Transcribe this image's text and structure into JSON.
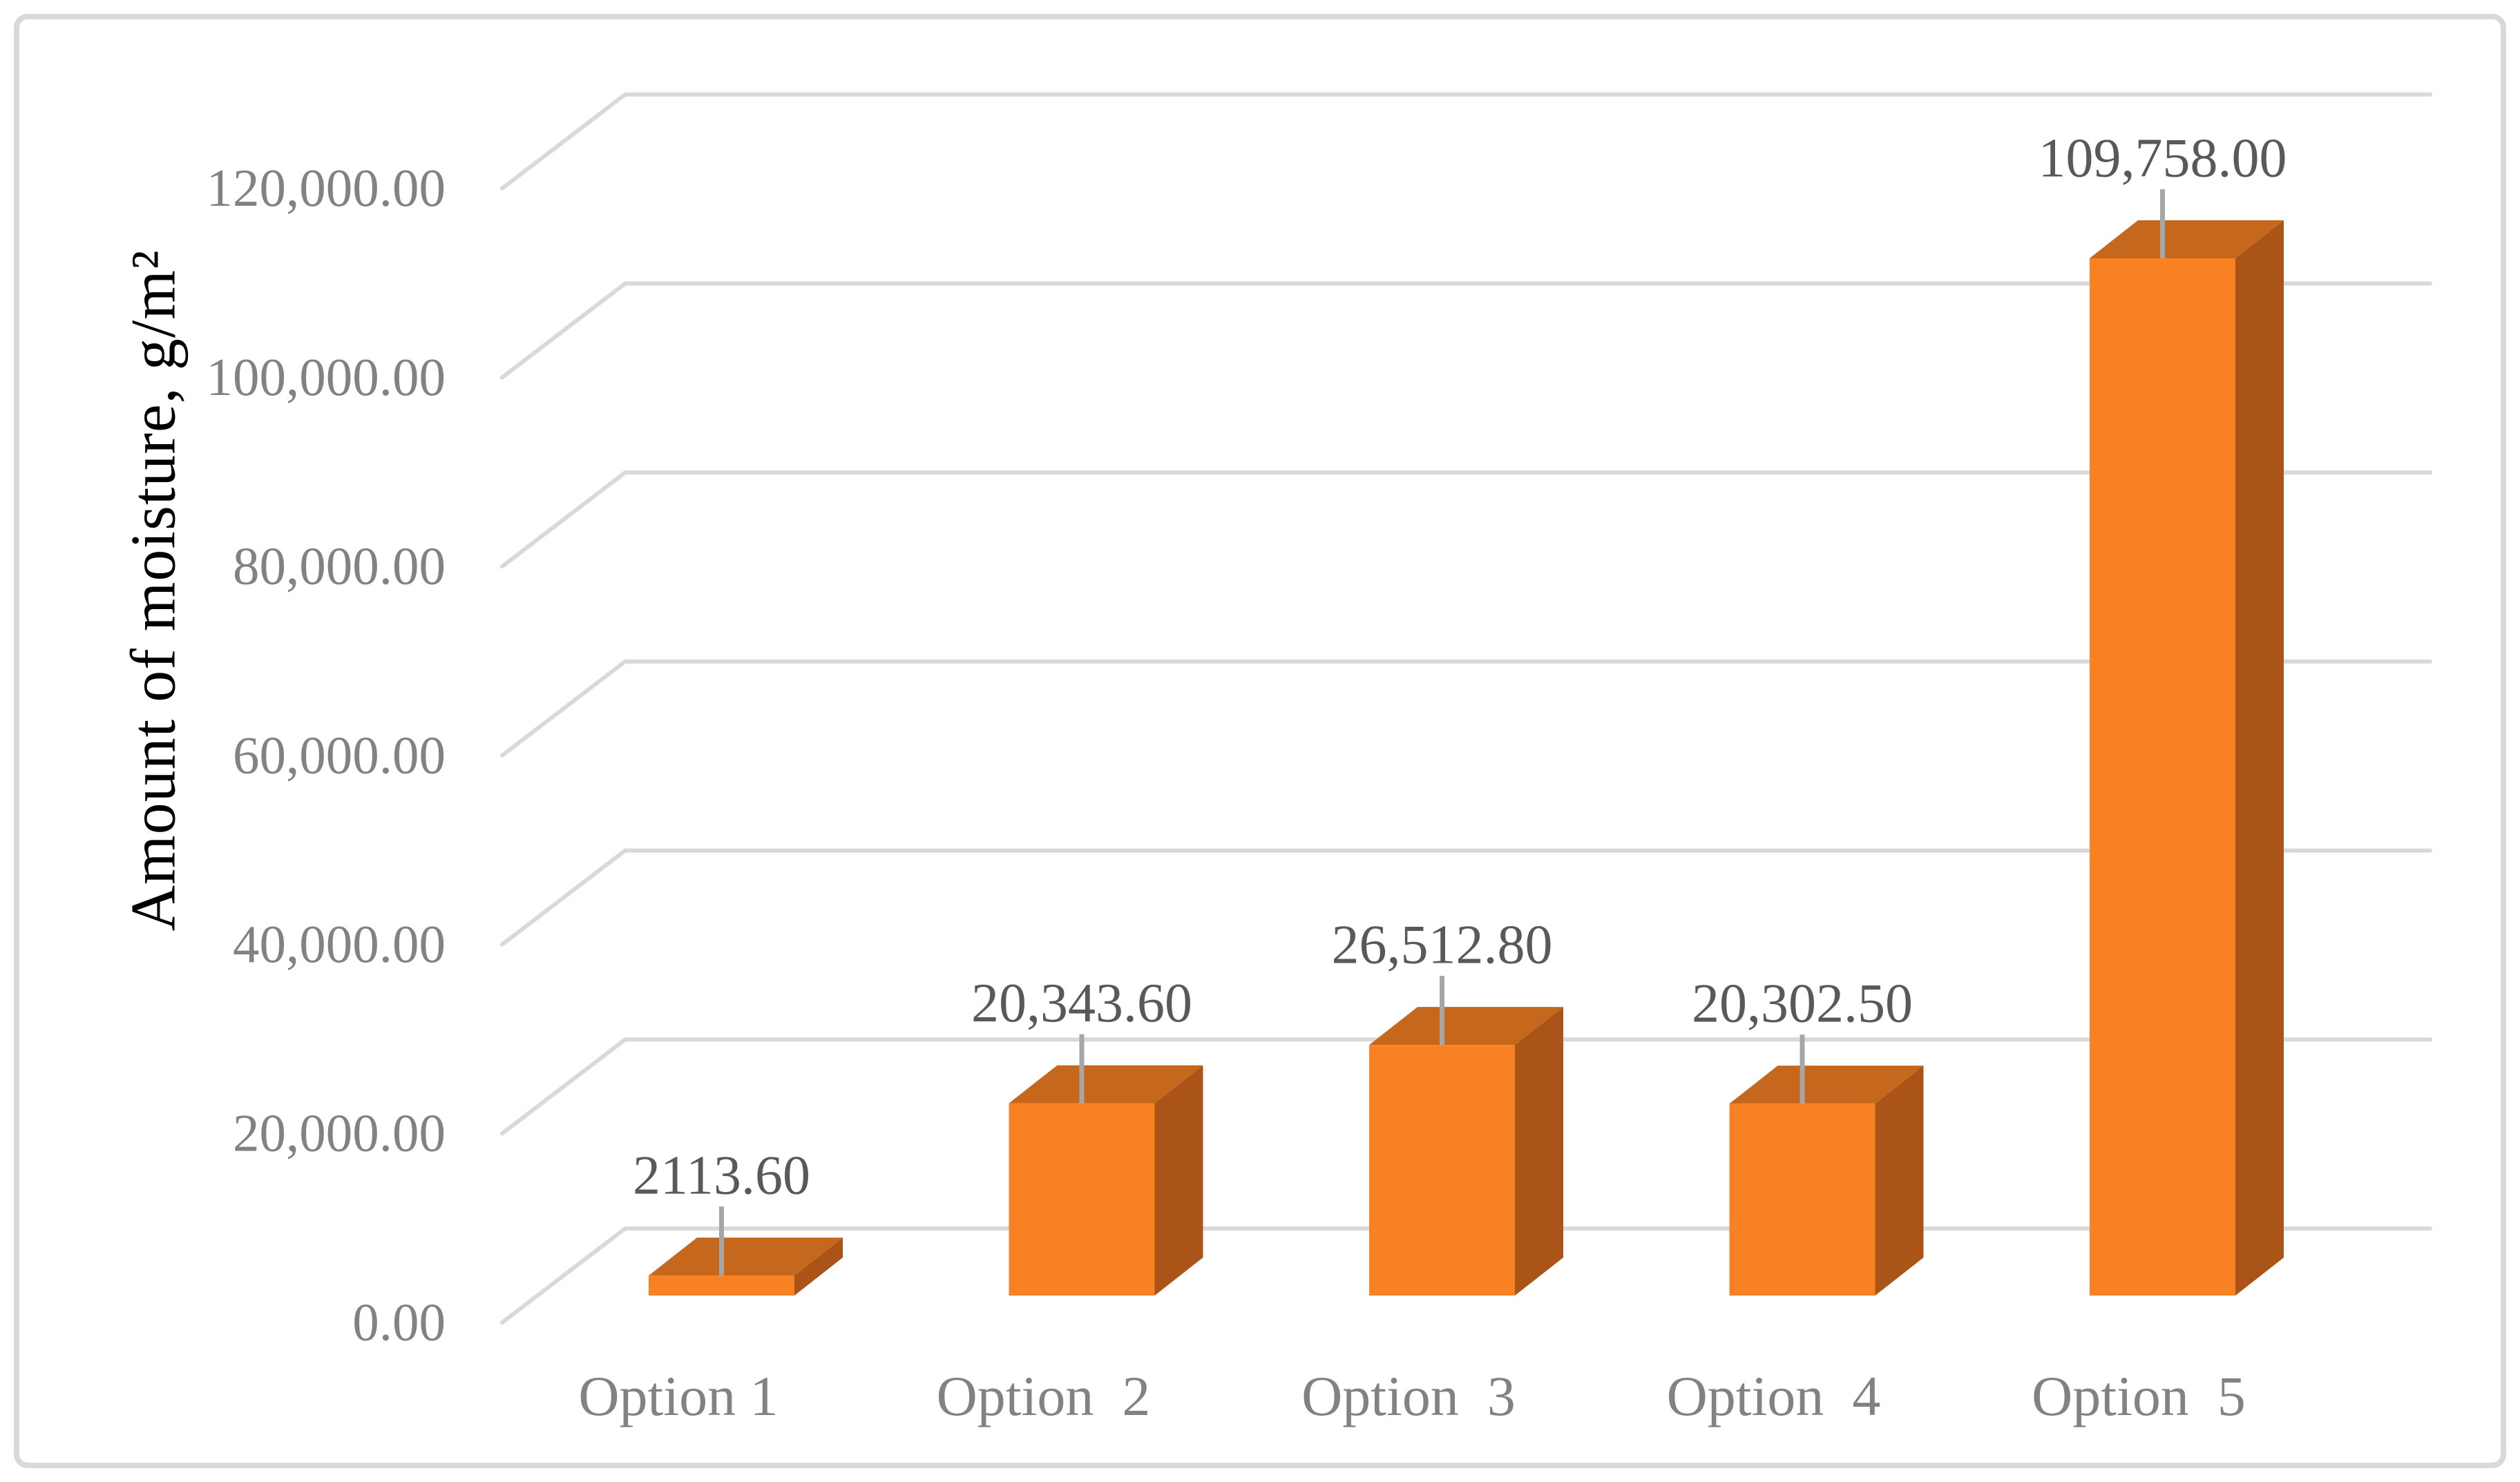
{
  "chart_data": {
    "type": "bar",
    "style": "3d-clustered-column",
    "title": "",
    "categories": [
      "Option 1",
      "Option  2",
      "Option  3",
      "Option  4",
      "Option  5"
    ],
    "series": [
      {
        "name": "Amount of moisture",
        "values": [
          2113.6,
          20343.6,
          26512.8,
          20302.5,
          109758.0
        ],
        "value_labels": [
          "2113.60",
          "20,343.60",
          "26,512.80",
          "20,302.50",
          "109,758.00"
        ]
      }
    ],
    "xlabel": "",
    "ylabel": "Amount of moisture, g/m²",
    "ylim": [
      0,
      120000
    ],
    "yticks": [
      0,
      20000,
      40000,
      60000,
      80000,
      100000,
      120000
    ],
    "ytick_labels": [
      "0.00",
      "20,000.00",
      "40,000.00",
      "60,000.00",
      "80,000.00",
      "100,000.00",
      "120,000.00"
    ],
    "grid": true,
    "legend": false,
    "data_labels_shown": true,
    "colors": {
      "bar_front": "#F88223",
      "bar_top": "#C5671D",
      "bar_side": "#AA5517",
      "gridline": "#D9D9D9",
      "leader_line": "#A6A6A6",
      "tick_text": "#828282",
      "category_text": "#828282",
      "data_label_text": "#595959",
      "axis_title_text": "#828282",
      "frame_border": "#D9D9D9",
      "background": "#FFFFFF"
    }
  }
}
